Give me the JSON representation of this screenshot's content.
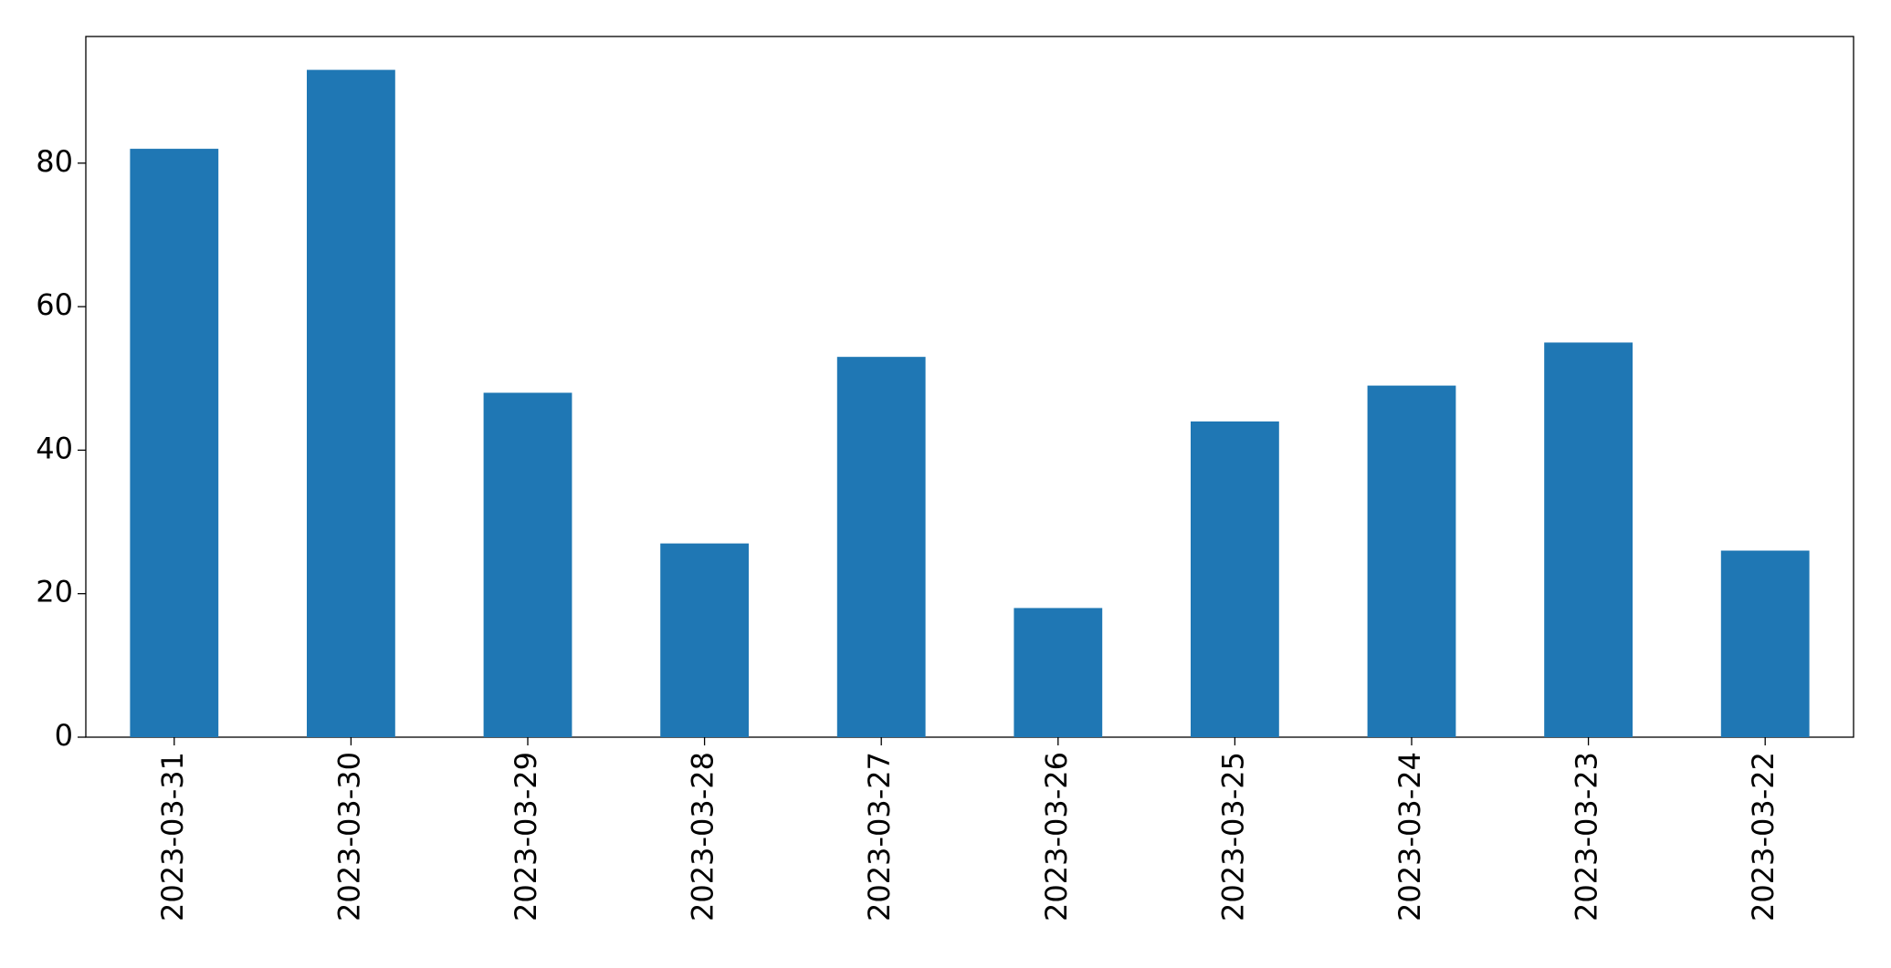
{
  "chart_data": {
    "type": "bar",
    "categories": [
      "2023-03-31",
      "2023-03-30",
      "2023-03-29",
      "2023-03-28",
      "2023-03-27",
      "2023-03-26",
      "2023-03-25",
      "2023-03-24",
      "2023-03-23",
      "2023-03-22"
    ],
    "values": [
      82,
      93,
      48,
      27,
      53,
      18,
      44,
      49,
      55,
      26
    ],
    "color": "#1f77b4",
    "ylim": [
      0,
      97.65
    ],
    "yticks": [
      0,
      20,
      40,
      60,
      80
    ],
    "grid": false
  }
}
